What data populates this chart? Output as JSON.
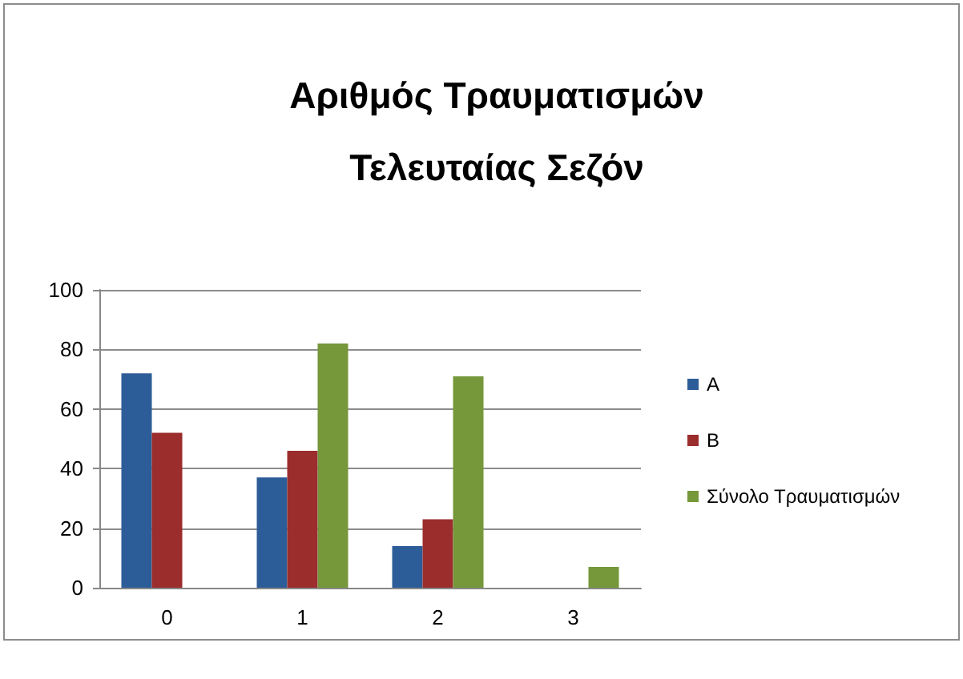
{
  "chart_data": {
    "type": "bar",
    "title": "Αριθμός Τραυματισμών Τελευταίας Σεζόν",
    "categories": [
      "0",
      "1",
      "2",
      "3"
    ],
    "series": [
      {
        "name": "A",
        "color": "#2c5d98",
        "values": [
          72,
          37,
          14,
          0
        ]
      },
      {
        "name": "B",
        "color": "#9b2d2d",
        "values": [
          52,
          46,
          23,
          0
        ]
      },
      {
        "name": "Σύνολο Τραυματισμών",
        "color": "#76973a",
        "values": [
          0,
          82,
          71,
          7
        ]
      }
    ],
    "ylim": [
      0,
      100
    ],
    "yticks": [
      0,
      20,
      40,
      60,
      80,
      100
    ],
    "grid": "y",
    "legend": "right"
  }
}
